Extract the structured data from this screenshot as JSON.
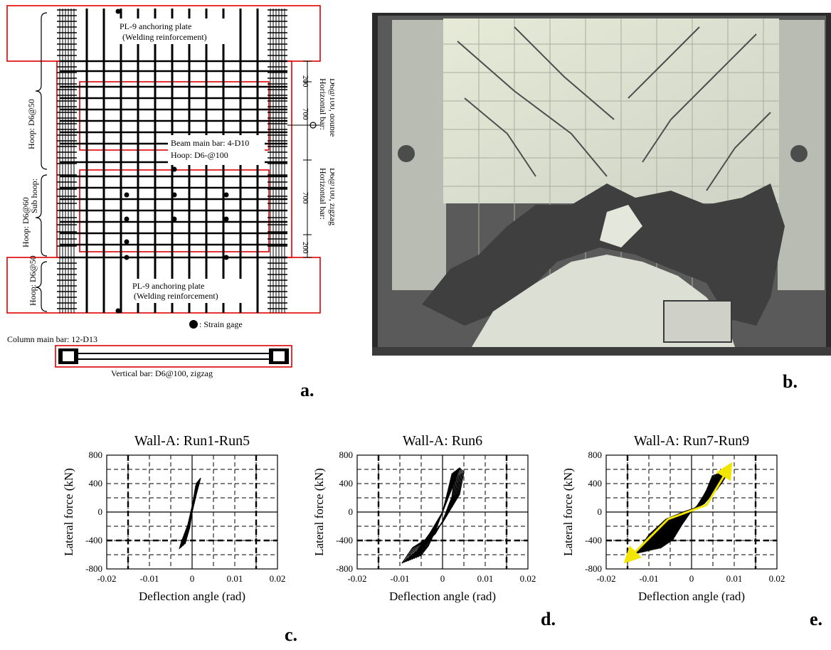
{
  "panel_a": {
    "labels": {
      "top_plate": "PL-9 anchoring plate",
      "top_plate_note": "(Welding reinforcement)",
      "bottom_plate": "PL-9 anchoring plate",
      "bottom_plate_note": "(Welding reinforcement)",
      "beam_main_bar": "Beam main bar: 4-D10",
      "beam_hoop": "Hoop: D6-@100",
      "strain_gage": ": Strain gage",
      "column_main_bar": "Column main bar: 12-D13",
      "vertical_bar": "Vertical bar: D6@100, zigzag",
      "hoop_top": "Hoop: D6@50",
      "hoop_mid": "Hoop: D6@60",
      "sub_hoop": "Sub hoop:",
      "hoop_bottom": "Hoop: D6@50",
      "horiz_double_1": "Horizontal bar:",
      "horiz_double_2": "D6@100, double",
      "horiz_zigzag_1": "Horizontal bar:",
      "horiz_zigzag_2": "D6@100, zigzag",
      "dim_200_top": "200",
      "dim_700_top": "700",
      "dim_700_bottom": "700",
      "dim_200_bottom": "200"
    },
    "letter": "a."
  },
  "panel_b": {
    "letter": "b."
  },
  "charts": [
    {
      "letter": "c.",
      "chart_data": {
        "type": "line",
        "title": "Wall-A: Run1-Run5",
        "xlabel": "Deflection angle  (rad)",
        "ylabel": "Lateral force (kN)",
        "xlim": [
          -0.02,
          0.02
        ],
        "ylim": [
          -800,
          800
        ],
        "xticks": [
          "-0.02",
          "-0.01",
          "0",
          "0.01",
          "0.02"
        ],
        "yticks": [
          "800",
          "400",
          "0",
          "-400",
          "-800"
        ],
        "grid": true,
        "series": [
          {
            "x": [
              -0.003,
              -0.001,
              0.0,
              0.001,
              0.002,
              0.0015,
              0.0,
              -0.001,
              -0.0025,
              -0.003
            ],
            "y": [
              -520,
              -250,
              0,
              250,
              480,
              420,
              80,
              -180,
              -420,
              -520
            ]
          }
        ]
      }
    },
    {
      "letter": "d.",
      "chart_data": {
        "type": "line",
        "title": "Wall-A: Run6",
        "xlabel": "Deflection angle  (rad)",
        "ylabel": "Lateral force (kN)",
        "xlim": [
          -0.02,
          0.02
        ],
        "ylim": [
          -800,
          800
        ],
        "xticks": [
          "-0.02",
          "-0.01",
          "0",
          "0.01",
          "0.02"
        ],
        "yticks": [
          "800",
          "400",
          "0",
          "-400",
          "-800"
        ],
        "grid": true,
        "series": [
          {
            "x": [
              -0.0095,
              -0.006,
              -0.003,
              0.0,
              0.002,
              0.004,
              0.005,
              0.004,
              0.002,
              0.0,
              -0.003,
              -0.007,
              -0.0095
            ],
            "y": [
              -720,
              -550,
              -300,
              0,
              300,
              620,
              560,
              250,
              50,
              -150,
              -350,
              -500,
              -720
            ]
          }
        ]
      }
    },
    {
      "letter": "e.",
      "chart_data": {
        "type": "line",
        "title": "Wall-A: Run7-Run9",
        "xlabel": "Deflection angle  (rad)",
        "ylabel": "Lateral force (kN)",
        "xlim": [
          -0.02,
          0.02
        ],
        "ylim": [
          -800,
          800
        ],
        "xticks": [
          "-0.02",
          "-0.01",
          "0",
          "0.01",
          "0.02"
        ],
        "yticks": [
          "800",
          "400",
          "0",
          "-400",
          "-800"
        ],
        "grid": true,
        "series": [
          {
            "x": [
              -0.013,
              -0.01,
              -0.006,
              -0.002,
              0.002,
              0.006,
              0.009,
              0.007,
              0.003,
              0.0,
              -0.004,
              -0.008,
              -0.013
            ],
            "y": [
              -580,
              -320,
              -100,
              0,
              80,
              320,
              600,
              400,
              120,
              20,
              -200,
              -450,
              -580
            ]
          }
        ],
        "arrow_color": "#f2e600"
      }
    }
  ]
}
